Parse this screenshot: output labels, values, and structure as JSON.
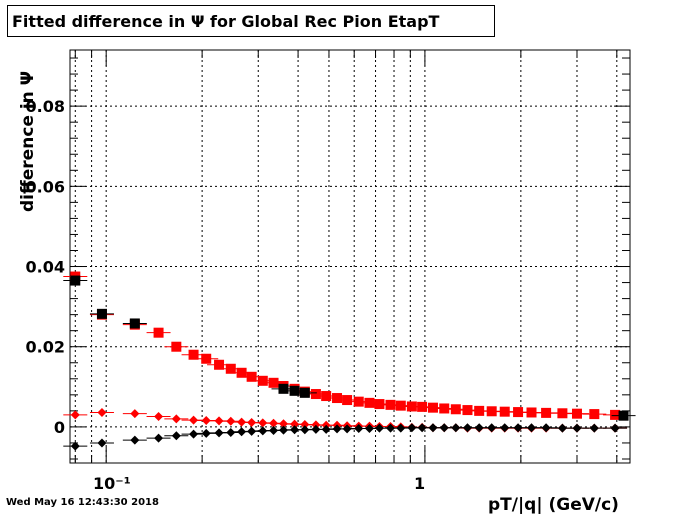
{
  "title": "Fitted difference in Ψ for Global Rec Pion EtapT",
  "footer": "Wed May 16 12:43:30 2018",
  "chart_data": {
    "type": "scatter",
    "title": "Fitted difference in Ψ for Global Rec Pion EtapT",
    "xlabel": "pT/|q| (GeV/c)",
    "ylabel": "difference in Ψ",
    "x_scale": "log",
    "xlim": [
      0.077,
      4.4
    ],
    "ylim": [
      -0.009,
      0.094
    ],
    "x_tick_labels": [
      "10⁻¹",
      "1"
    ],
    "y_tick_labels": [
      "0",
      "0.02",
      "0.04",
      "0.06",
      "0.08"
    ],
    "y_ticks": [
      0,
      0.02,
      0.04,
      0.06,
      0.08
    ],
    "grid": true,
    "series": [
      {
        "color": "#ff0000",
        "marker": "square",
        "x": [
          0.08,
          0.097,
          0.123,
          0.146,
          0.166,
          0.188,
          0.206,
          0.226,
          0.246,
          0.266,
          0.286,
          0.31,
          0.335,
          0.36,
          0.39,
          0.42,
          0.455,
          0.49,
          0.53,
          0.57,
          0.62,
          0.67,
          0.72,
          0.78,
          0.84,
          0.91,
          0.98,
          1.06,
          1.15,
          1.25,
          1.36,
          1.48,
          1.62,
          1.78,
          1.96,
          2.16,
          2.4,
          2.7,
          3.0,
          3.4,
          3.95
        ],
        "y": [
          0.0375,
          0.028,
          0.0255,
          0.0235,
          0.02,
          0.018,
          0.017,
          0.0155,
          0.0145,
          0.0135,
          0.0125,
          0.0115,
          0.011,
          0.0102,
          0.0095,
          0.0088,
          0.0082,
          0.0077,
          0.0072,
          0.0067,
          0.0063,
          0.006,
          0.0057,
          0.0055,
          0.0053,
          0.0051,
          0.005,
          0.0048,
          0.0046,
          0.0044,
          0.0042,
          0.004,
          0.0039,
          0.0038,
          0.0037,
          0.0036,
          0.0035,
          0.0034,
          0.0033,
          0.0032,
          0.003
        ]
      },
      {
        "color": "#ff0000",
        "marker": "diamond",
        "x": [
          0.08,
          0.097,
          0.123,
          0.146,
          0.166,
          0.188,
          0.206,
          0.226,
          0.246,
          0.266,
          0.286,
          0.31,
          0.335,
          0.36,
          0.39,
          0.42,
          0.455,
          0.49,
          0.53,
          0.57,
          0.62,
          0.67,
          0.72,
          0.78,
          0.84,
          0.91,
          0.98,
          1.06,
          1.15,
          1.25,
          1.36,
          1.48,
          1.62,
          1.78,
          1.96,
          2.16,
          2.4,
          2.7,
          3.0,
          3.4,
          3.95
        ],
        "y": [
          0.003,
          0.0036,
          0.0033,
          0.0026,
          0.002,
          0.0017,
          0.0016,
          0.0015,
          0.0014,
          0.0012,
          0.0011,
          0.001,
          0.0009,
          0.0008,
          0.0007,
          0.0006,
          0.0005,
          0.0004,
          0.0004,
          0.0003,
          0.0002,
          0.0002,
          0.0001,
          0.0001,
          0.0,
          -0.0001,
          -0.0001,
          -0.0002,
          -0.0002,
          -0.0002,
          -0.0003,
          -0.0003,
          -0.0003,
          -0.0003,
          -0.0003,
          -0.0003,
          -0.0003,
          -0.0003,
          -0.0003,
          -0.0003,
          -0.0003
        ]
      },
      {
        "color": "#000000",
        "marker": "diamond",
        "x": [
          0.08,
          0.097,
          0.123,
          0.146,
          0.166,
          0.188,
          0.206,
          0.226,
          0.246,
          0.266,
          0.286,
          0.31,
          0.335,
          0.36,
          0.39,
          0.42,
          0.455,
          0.49,
          0.53,
          0.57,
          0.62,
          0.67,
          0.72,
          0.78,
          0.84,
          0.91,
          0.98,
          1.06,
          1.15,
          1.25,
          1.36,
          1.48,
          1.62,
          1.78,
          1.96,
          2.16,
          2.4,
          2.7,
          3.0,
          3.4,
          3.95
        ],
        "y": [
          -0.0048,
          -0.004,
          -0.0033,
          -0.0028,
          -0.0022,
          -0.0018,
          -0.0016,
          -0.0015,
          -0.0014,
          -0.0012,
          -0.0011,
          -0.001,
          -0.0009,
          -0.0008,
          -0.0007,
          -0.0007,
          -0.0006,
          -0.0006,
          -0.0005,
          -0.0005,
          -0.0004,
          -0.0004,
          -0.0003,
          -0.0003,
          -0.0003,
          -0.0002,
          -0.0002,
          -0.0002,
          -0.0002,
          -0.0002,
          -0.0002,
          -0.0002,
          -0.0002,
          -0.0002,
          -0.0002,
          -0.0002,
          -0.0002,
          -0.0003,
          -0.0003,
          -0.0003,
          -0.0003
        ]
      },
      {
        "color": "#000000",
        "marker": "square",
        "x": [
          0.08,
          0.097,
          0.123,
          0.36,
          0.39,
          0.42,
          4.2
        ],
        "y": [
          0.0365,
          0.0282,
          0.0258,
          0.0095,
          0.009,
          0.0085,
          0.0028
        ]
      }
    ]
  }
}
